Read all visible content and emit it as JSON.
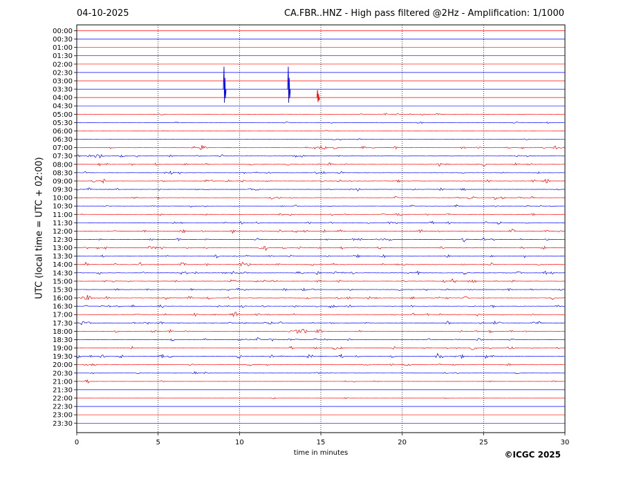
{
  "date": "04-10-2025",
  "title": "CA.FBR..HNZ - High pass filtered @2Hz - Amplification: 1/1000",
  "copyright": "©ICGC 2025",
  "chart_data": {
    "type": "line",
    "title": "CA.FBR..HNZ - High pass filtered @2Hz - Amplification: 1/1000",
    "xlabel": "time in minutes",
    "ylabel": "UTC (local time = UTC + 02:00)",
    "xlim": [
      0,
      30
    ],
    "xticks": [
      "0",
      "5",
      "10",
      "15",
      "20",
      "25",
      "30"
    ],
    "grid": "vertical dotted at x ticks",
    "colors": {
      "even_rows": "#ff0000",
      "odd_rows": "#0000ff"
    },
    "rows": [
      "00:00",
      "00:30",
      "01:00",
      "01:30",
      "02:00",
      "02:30",
      "03:00",
      "03:30",
      "04:00",
      "04:30",
      "05:00",
      "05:30",
      "06:00",
      "06:30",
      "07:00",
      "07:30",
      "08:00",
      "08:30",
      "09:00",
      "09:30",
      "10:00",
      "10:30",
      "11:00",
      "11:30",
      "12:00",
      "12:30",
      "13:00",
      "13:30",
      "14:00",
      "14:30",
      "15:00",
      "15:30",
      "16:00",
      "16:30",
      "17:00",
      "17:30",
      "18:00",
      "18:30",
      "19:00",
      "19:30",
      "20:00",
      "20:30",
      "21:00",
      "21:30",
      "22:00",
      "22:30",
      "23:00",
      "23:30"
    ],
    "activity": [
      0,
      0,
      0,
      0,
      0,
      0,
      0,
      0,
      0,
      0,
      0.3,
      0.3,
      0.1,
      0.2,
      0.8,
      0.6,
      0.7,
      0.6,
      0.7,
      0.6,
      0.6,
      0.5,
      0.5,
      0.6,
      0.8,
      0.7,
      0.8,
      0.6,
      0.8,
      0.8,
      0.8,
      0.7,
      0.9,
      0.8,
      0.7,
      0.8,
      0.7,
      0.7,
      0.7,
      0.9,
      0.5,
      0.4,
      0.3,
      0,
      0.1,
      0,
      0,
      0
    ],
    "spikes": [
      {
        "row": "03:30",
        "x": 9.05,
        "amplitude": 3
      },
      {
        "row": "03:30",
        "x": 13.0,
        "amplitude": 3
      },
      {
        "row": "04:00",
        "x": 14.8,
        "amplitude": 1
      }
    ]
  }
}
